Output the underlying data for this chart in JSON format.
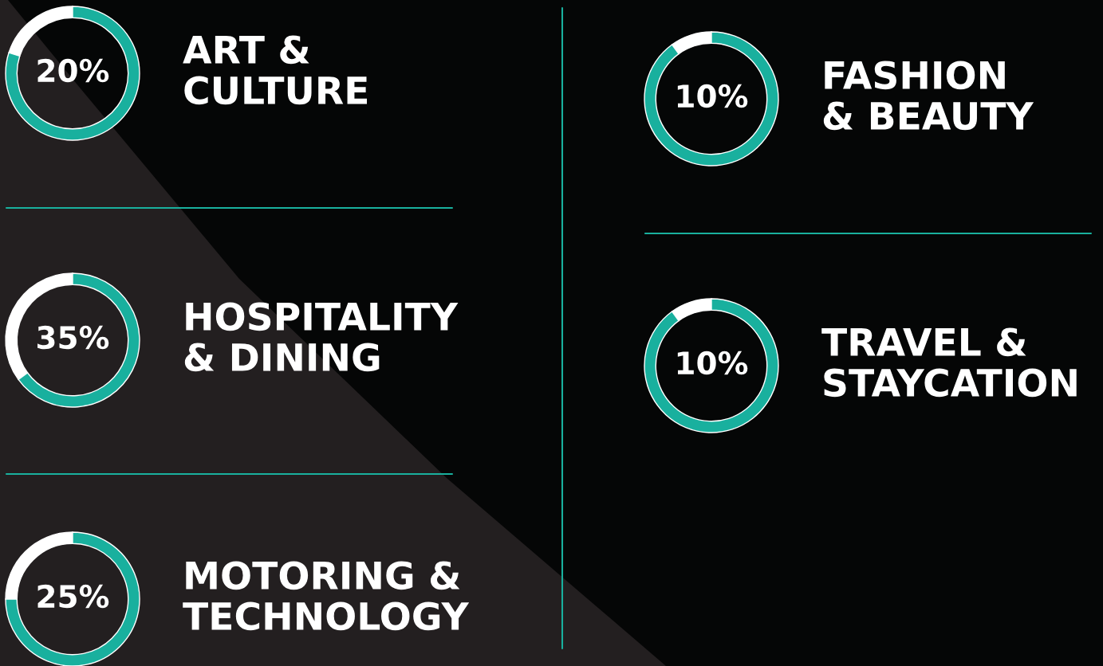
{
  "chart_data": [
    {
      "type": "donut",
      "title": "ART &\nCULTURE",
      "categories": [
        null,
        null
      ],
      "values": [
        20,
        80
      ],
      "colors": [
        "#ffffff",
        "#19b09e"
      ],
      "annotations": [
        "20%"
      ]
    },
    {
      "type": "donut",
      "title": "HOSPITALITY\n& DINING",
      "categories": [
        null,
        null
      ],
      "values": [
        35,
        65
      ],
      "colors": [
        "#ffffff",
        "#19b09e"
      ],
      "annotations": [
        "35%"
      ]
    },
    {
      "type": "donut",
      "title": "MOTORING &\nTECHNOLOGY",
      "categories": [
        null,
        null
      ],
      "values": [
        25,
        75
      ],
      "colors": [
        "#ffffff",
        "#19b09e"
      ],
      "annotations": [
        "25%"
      ]
    },
    {
      "type": "donut",
      "title": "FASHION\n& BEAUTY",
      "categories": [
        null,
        null
      ],
      "values": [
        10,
        90
      ],
      "colors": [
        "#ffffff",
        "#19b09e"
      ],
      "annotations": [
        "10%"
      ]
    },
    {
      "type": "donut",
      "title": "TRAVEL &\nSTAYCATION",
      "categories": [
        null,
        null
      ],
      "values": [
        10,
        90
      ],
      "colors": [
        "#ffffff",
        "#19b09e"
      ],
      "annotations": [
        "10%"
      ]
    }
  ]
}
